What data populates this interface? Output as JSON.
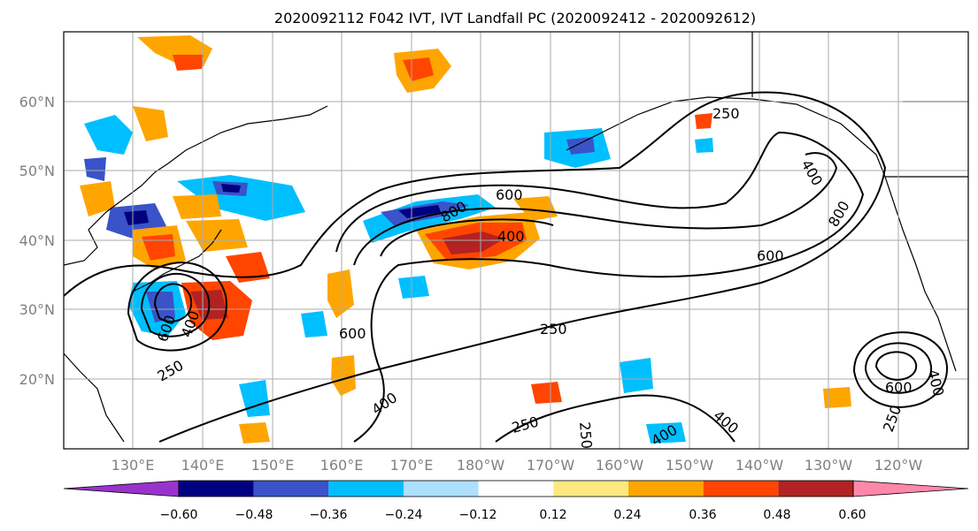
{
  "title": "2020092112 F042 IVT, IVT Landfall PC (2020092412 - 2020092612)",
  "lat_labels": [
    "20°N",
    "30°N",
    "40°N",
    "50°N",
    "60°N"
  ],
  "lon_labels": [
    "130°E",
    "140°E",
    "150°E",
    "160°E",
    "170°E",
    "180°W",
    "170°W",
    "160°W",
    "150°W",
    "140°W",
    "130°W",
    "120°W"
  ],
  "colorbar": {
    "colors": [
      "#9933cc",
      "#000080",
      "#3a53c9",
      "#00bfff",
      "#addfff",
      "#ffffff",
      "#ffe880",
      "#ffa500",
      "#ff4500",
      "#b22222",
      "#ff88aa"
    ],
    "tick_labels": [
      "−0.60",
      "−0.48",
      "−0.36",
      "−0.24",
      "−0.12",
      "0.12",
      "0.24",
      "0.36",
      "0.48",
      "0.60"
    ]
  },
  "contour_labels": [
    "250",
    "400",
    "600",
    "800"
  ]
}
